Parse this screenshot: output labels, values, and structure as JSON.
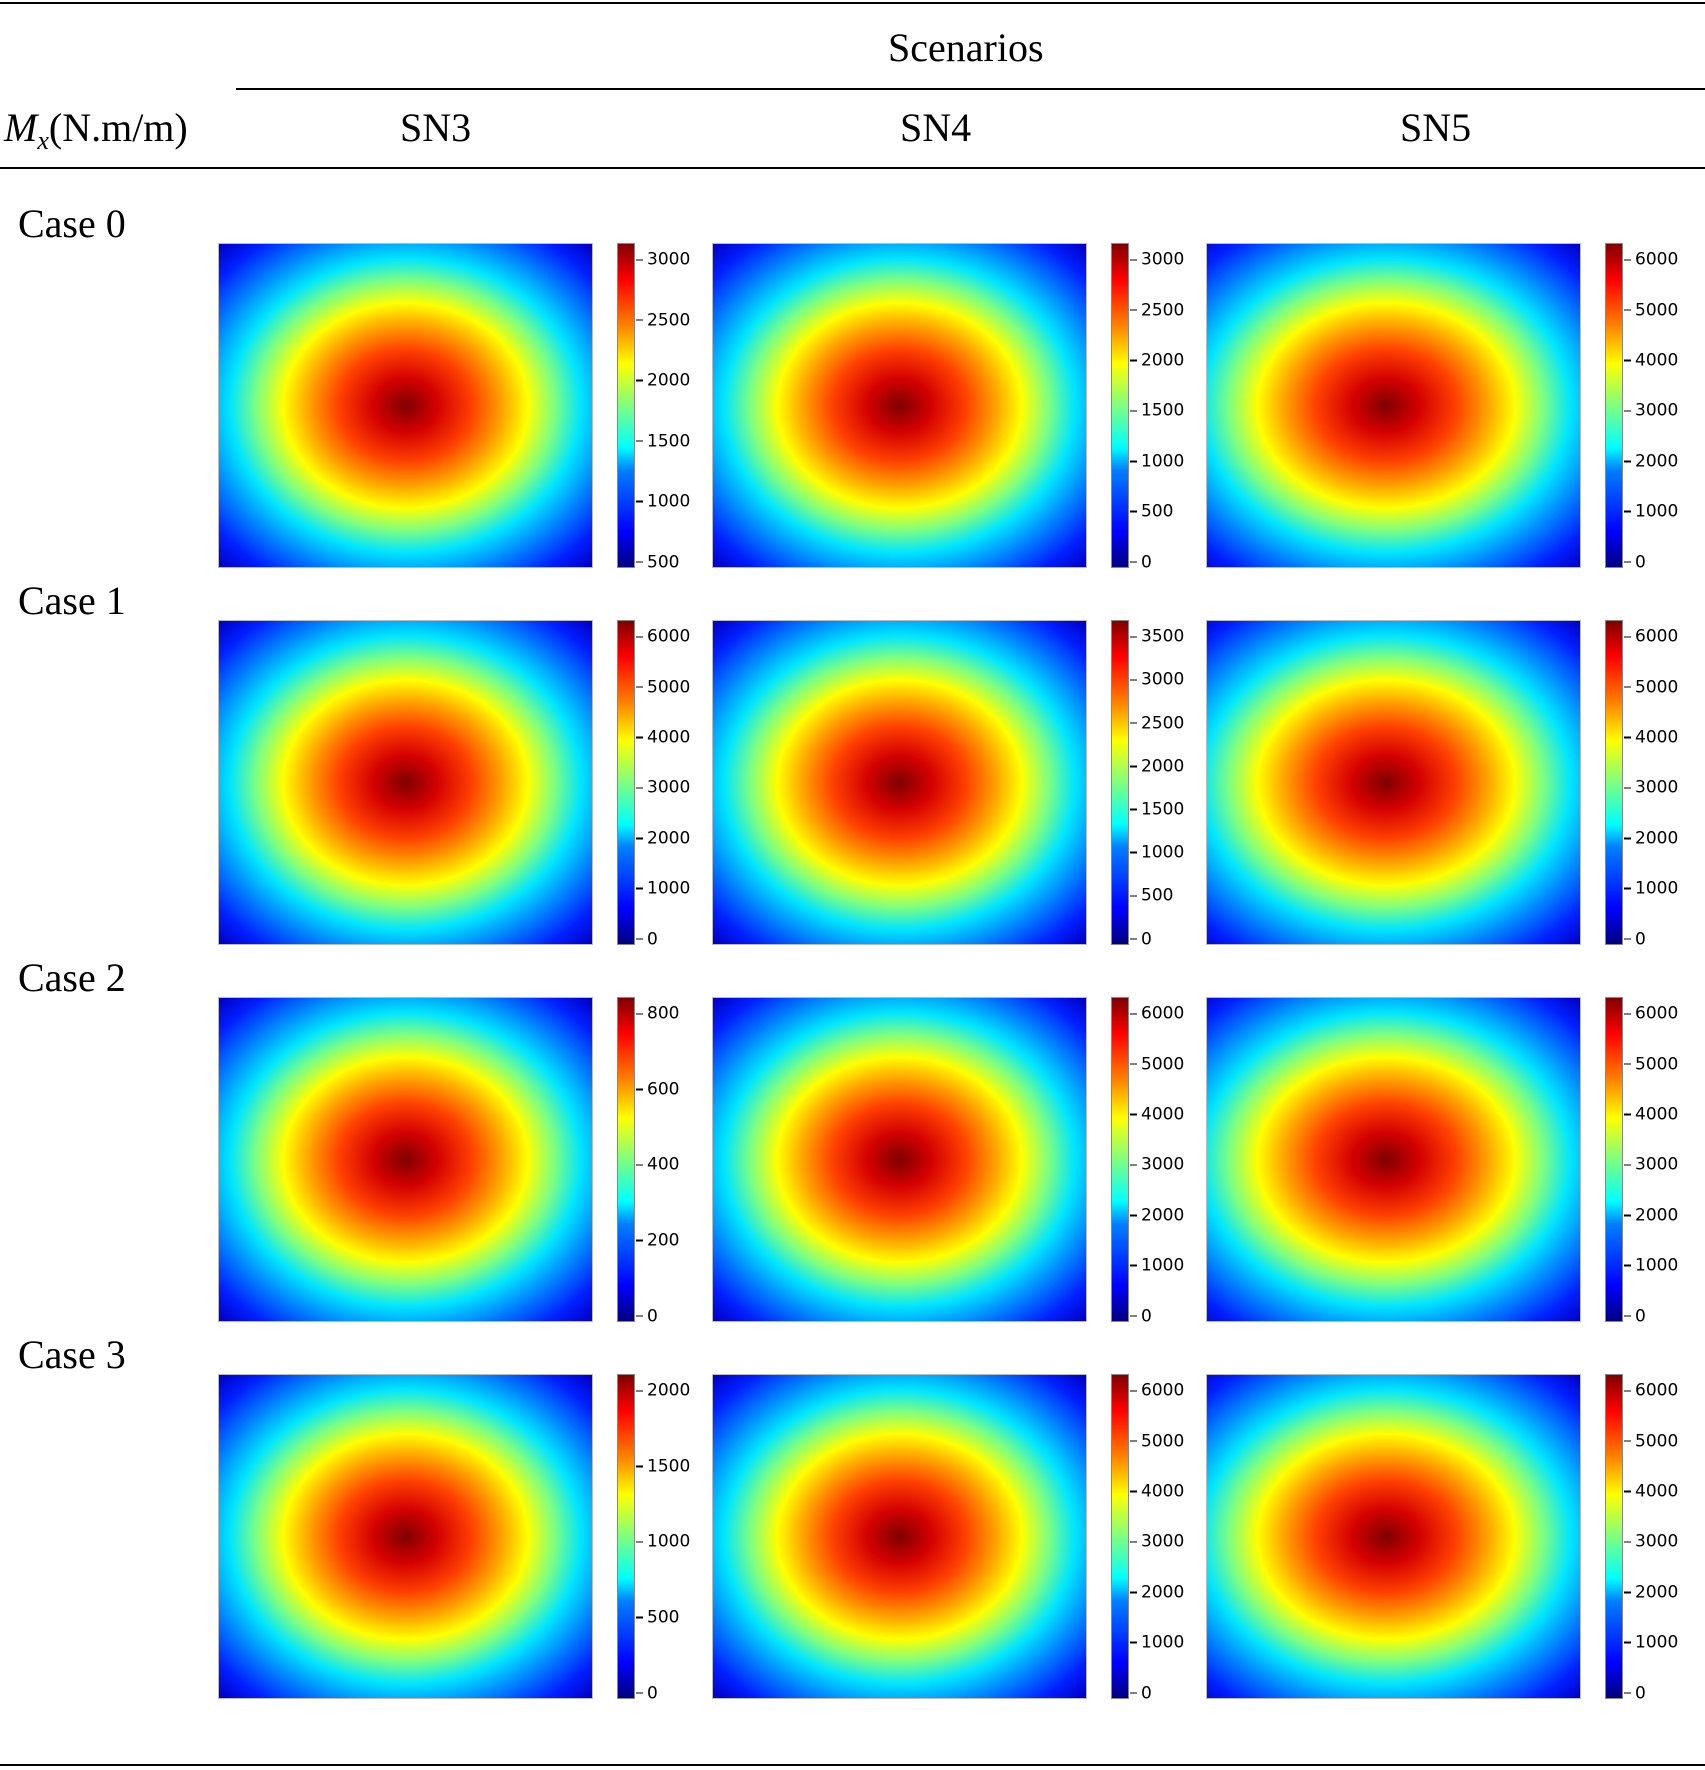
{
  "header": {
    "group_title": "Scenarios",
    "variable_symbol": "M",
    "variable_subscript": "x",
    "variable_unit": "(N.m/m)",
    "columns": [
      "SN3",
      "SN4",
      "SN5"
    ]
  },
  "rows": [
    {
      "label": "Case 0",
      "cells": [
        {
          "ticks": [
            "500",
            "1000",
            "1500",
            "2000",
            "2500",
            "3000"
          ]
        },
        {
          "ticks": [
            "0",
            "500",
            "1000",
            "1500",
            "2000",
            "2500",
            "3000"
          ]
        },
        {
          "ticks": [
            "0",
            "1000",
            "2000",
            "3000",
            "4000",
            "5000",
            "6000"
          ]
        }
      ]
    },
    {
      "label": "Case 1",
      "cells": [
        {
          "ticks": [
            "0",
            "1000",
            "2000",
            "3000",
            "4000",
            "5000",
            "6000"
          ]
        },
        {
          "ticks": [
            "0",
            "500",
            "1000",
            "1500",
            "2000",
            "2500",
            "3000",
            "3500"
          ]
        },
        {
          "ticks": [
            "0",
            "1000",
            "2000",
            "3000",
            "4000",
            "5000",
            "6000"
          ]
        }
      ]
    },
    {
      "label": "Case 2",
      "cells": [
        {
          "ticks": [
            "0",
            "200",
            "400",
            "600",
            "800"
          ]
        },
        {
          "ticks": [
            "0",
            "1000",
            "2000",
            "3000",
            "4000",
            "5000",
            "6000"
          ]
        },
        {
          "ticks": [
            "0",
            "1000",
            "2000",
            "3000",
            "4000",
            "5000",
            "6000"
          ]
        }
      ]
    },
    {
      "label": "Case 3",
      "cells": [
        {
          "ticks": [
            "0",
            "500",
            "1000",
            "1500",
            "2000"
          ]
        },
        {
          "ticks": [
            "0",
            "1000",
            "2000",
            "3000",
            "4000",
            "5000",
            "6000"
          ]
        },
        {
          "ticks": [
            "0",
            "1000",
            "2000",
            "3000",
            "4000",
            "5000",
            "6000"
          ]
        }
      ]
    }
  ],
  "colormap": "jet"
}
